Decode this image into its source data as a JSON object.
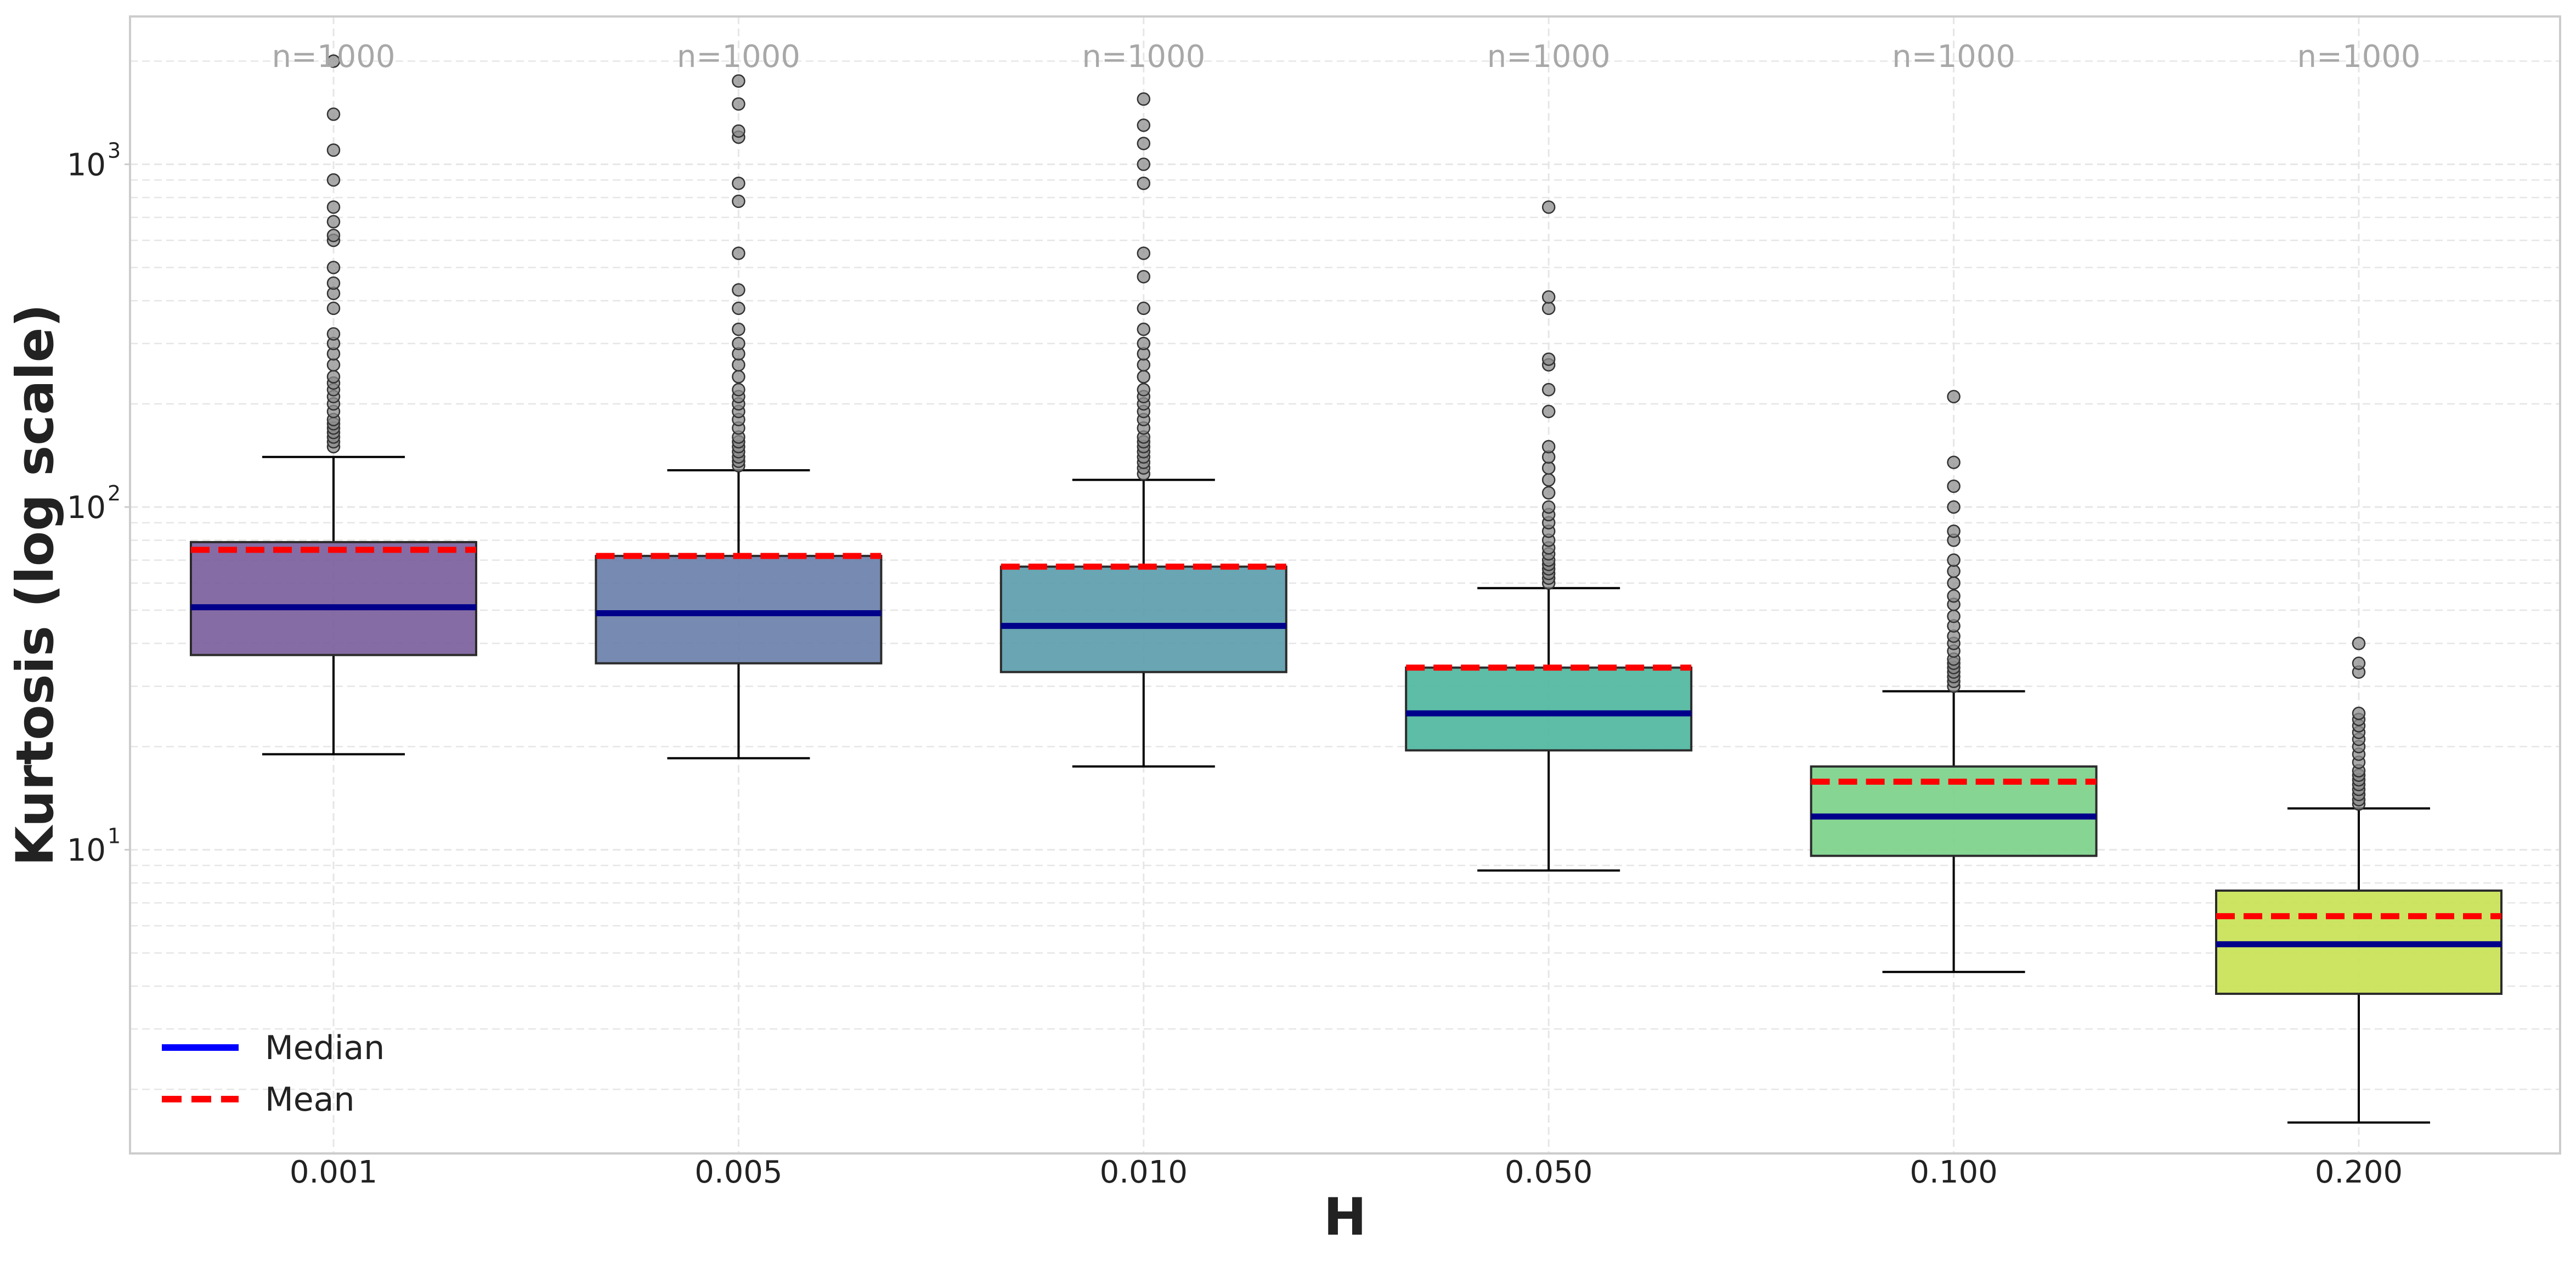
{
  "chart_data": {
    "type": "box",
    "title": "",
    "xlabel": "H",
    "ylabel": "Kurtosis (log scale)",
    "yscale": "log",
    "ylim": [
      1.3,
      2700
    ],
    "y_ticks": [
      {
        "value": 10,
        "base": "10",
        "exp": "1"
      },
      {
        "value": 100,
        "base": "10",
        "exp": "2"
      },
      {
        "value": 1000,
        "base": "10",
        "exp": "3"
      }
    ],
    "grid": true,
    "legend": {
      "position": "lower-left",
      "entries": [
        {
          "label": "Median",
          "color": "#0000ff",
          "style": "solid"
        },
        {
          "label": "Mean",
          "color": "#ff0000",
          "style": "dashed"
        }
      ]
    },
    "annotation_color": "#a8a8a8",
    "median_color": "#00008b",
    "mean_color": "#ff0000",
    "categories": [
      "0.001",
      "0.005",
      "0.010",
      "0.050",
      "0.100",
      "0.200"
    ],
    "boxes": [
      {
        "label": "0.001",
        "n_label": "n=1000",
        "color": "#7b5f9c",
        "whisker_low": 19,
        "q1": 37,
        "median": 51,
        "q3": 79,
        "whisker_high": 140,
        "mean": 75,
        "outliers": [
          150,
          155,
          160,
          165,
          170,
          175,
          180,
          190,
          200,
          210,
          220,
          230,
          240,
          260,
          280,
          300,
          320,
          380,
          420,
          450,
          500,
          600,
          620,
          680,
          750,
          900,
          1100,
          1400,
          2000
        ]
      },
      {
        "label": "0.005",
        "n_label": "n=1000",
        "color": "#6b80aa",
        "whisker_low": 18.5,
        "q1": 35,
        "median": 49,
        "q3": 72,
        "whisker_high": 128,
        "mean": 72,
        "outliers": [
          132,
          136,
          140,
          145,
          150,
          155,
          160,
          170,
          180,
          190,
          200,
          210,
          220,
          240,
          260,
          280,
          300,
          330,
          380,
          430,
          550,
          780,
          880,
          1200,
          1250,
          1500,
          1750
        ]
      },
      {
        "label": "0.010",
        "n_label": "n=1000",
        "color": "#5c9dab",
        "whisker_low": 17.5,
        "q1": 33,
        "median": 45,
        "q3": 67,
        "whisker_high": 120,
        "mean": 67,
        "outliers": [
          125,
          130,
          135,
          140,
          145,
          150,
          155,
          160,
          170,
          180,
          190,
          200,
          210,
          220,
          240,
          260,
          280,
          300,
          330,
          380,
          470,
          550,
          880,
          1000,
          1150,
          1300,
          1550
        ]
      },
      {
        "label": "0.050",
        "n_label": "n=1000",
        "color": "#4fb79e",
        "whisker_low": 8.7,
        "q1": 19.5,
        "median": 25,
        "q3": 34,
        "whisker_high": 58,
        "mean": 34,
        "outliers": [
          60,
          62,
          64,
          66,
          68,
          70,
          73,
          76,
          80,
          85,
          90,
          95,
          100,
          110,
          120,
          130,
          140,
          150,
          190,
          220,
          260,
          270,
          380,
          410,
          750
        ]
      },
      {
        "label": "0.100",
        "n_label": "n=1000",
        "color": "#7dd18a",
        "whisker_low": 4.4,
        "q1": 9.6,
        "median": 12.5,
        "q3": 17.5,
        "whisker_high": 29,
        "mean": 15.8,
        "outliers": [
          30,
          31,
          32,
          33,
          34,
          35,
          36,
          38,
          40,
          42,
          45,
          48,
          52,
          55,
          60,
          65,
          70,
          80,
          85,
          100,
          115,
          135,
          210
        ]
      },
      {
        "label": "0.200",
        "n_label": "n=1000",
        "color": "#c8e255",
        "whisker_low": 1.6,
        "q1": 3.8,
        "median": 5.3,
        "q3": 7.6,
        "whisker_high": 13.2,
        "mean": 6.4,
        "outliers": [
          13.6,
          14,
          14.5,
          15,
          15.5,
          16,
          16.5,
          17,
          18,
          19,
          20,
          21,
          22,
          23,
          24,
          25,
          33,
          35,
          40
        ]
      }
    ]
  }
}
